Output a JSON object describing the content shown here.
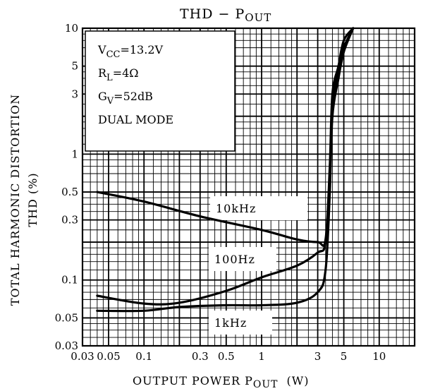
{
  "chart_data": {
    "type": "line",
    "title": "THD − P",
    "title_sub": "OUT",
    "xlabel": "OUTPUT POWER P",
    "xlabel_sub": "OUT",
    "xlabel_unit": "(W)",
    "ylabel_line1": "TOTAL HARMONIC DISTORTION",
    "ylabel_line2": "THD (%)",
    "x_scale": "log",
    "y_scale": "log",
    "xlim": [
      0.03,
      20
    ],
    "ylim": [
      0.03,
      10
    ],
    "grid": true,
    "xticks": [
      {
        "value": 0.03,
        "label": "0.03"
      },
      {
        "value": 0.05,
        "label": "0.05"
      },
      {
        "value": 0.1,
        "label": "0.1"
      },
      {
        "value": 0.3,
        "label": "0.3"
      },
      {
        "value": 0.5,
        "label": "0.5"
      },
      {
        "value": 1,
        "label": "1"
      },
      {
        "value": 3,
        "label": "3"
      },
      {
        "value": 5,
        "label": "5"
      },
      {
        "value": 10,
        "label": "10"
      }
    ],
    "yticks": [
      {
        "value": 0.03,
        "label": "0.03"
      },
      {
        "value": 0.05,
        "label": "0.05"
      },
      {
        "value": 0.1,
        "label": "0.1"
      },
      {
        "value": 0.3,
        "label": "0.3"
      },
      {
        "value": 0.5,
        "label": "0.5"
      },
      {
        "value": 1,
        "label": "1"
      },
      {
        "value": 3,
        "label": "3"
      },
      {
        "value": 5,
        "label": "5"
      },
      {
        "value": 10,
        "label": "10"
      }
    ],
    "conditions": [
      {
        "main": "V",
        "sub": "CC",
        "rest": "=13.2V"
      },
      {
        "main": "R",
        "sub": "L",
        "rest": "=4Ω"
      },
      {
        "main": "G",
        "sub": "V",
        "rest": "=52dB"
      },
      {
        "main": "DUAL MODE",
        "sub": "",
        "rest": ""
      }
    ],
    "series": [
      {
        "name": "10kHz",
        "x": [
          0.04,
          0.1,
          0.3,
          1,
          2,
          3,
          3.5,
          3.8,
          4.0,
          4.5,
          5,
          6
        ],
        "y": [
          0.5,
          0.42,
          0.32,
          0.25,
          0.21,
          0.2,
          0.21,
          0.8,
          3,
          5,
          8,
          10
        ]
      },
      {
        "name": "100Hz",
        "x": [
          0.04,
          0.1,
          0.2,
          0.5,
          1,
          2,
          3,
          3.5,
          3.8,
          4.0,
          4.5,
          5,
          6
        ],
        "y": [
          0.075,
          0.065,
          0.066,
          0.082,
          0.105,
          0.13,
          0.165,
          0.2,
          0.7,
          2.5,
          4.5,
          7,
          10
        ]
      },
      {
        "name": "1kHz",
        "x": [
          0.04,
          0.1,
          0.2,
          0.5,
          1,
          2,
          3,
          3.5,
          3.8,
          4.0,
          4.5,
          5,
          6
        ],
        "y": [
          0.057,
          0.057,
          0.061,
          0.063,
          0.063,
          0.066,
          0.08,
          0.12,
          0.5,
          2,
          4,
          6.5,
          10
        ]
      }
    ]
  }
}
